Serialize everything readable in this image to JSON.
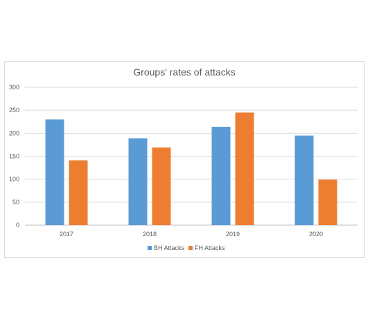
{
  "chart_data": {
    "type": "bar",
    "title": "Groups' rates of attacks",
    "xlabel": "",
    "ylabel": "",
    "categories": [
      "2017",
      "2018",
      "2019",
      "2020"
    ],
    "series": [
      {
        "name": "BH Attacks",
        "color": "#5b9bd5",
        "values": [
          230,
          189,
          214,
          195
        ]
      },
      {
        "name": "FH Attacks",
        "color": "#ed7d31",
        "values": [
          141,
          169,
          245,
          99
        ]
      }
    ],
    "ylim": [
      0,
      300
    ],
    "yticks": [
      0,
      50,
      100,
      150,
      200,
      250,
      300
    ],
    "grid": true,
    "legend": "bottom-center"
  }
}
